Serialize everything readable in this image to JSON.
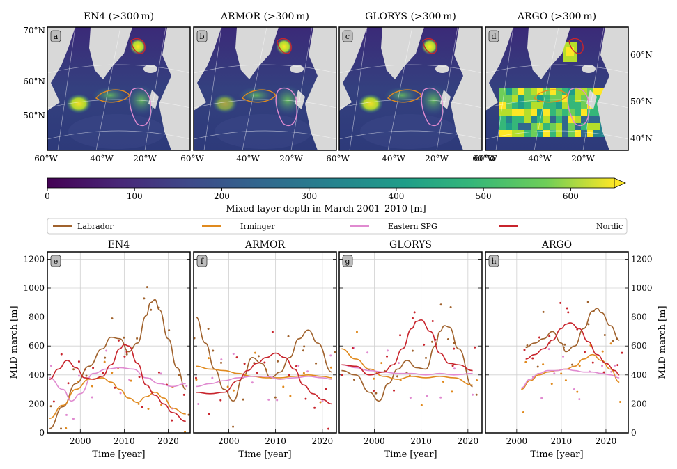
{
  "colors": {
    "Labrador": "#a0622d",
    "Irminger": "#e08a1e",
    "Eastern SPG": "#e08ad0",
    "Nordic": "#c8242c",
    "land": "#d8d8d8",
    "ocean_low": "#3b0f70"
  },
  "maps": [
    {
      "letter": "a",
      "title": "EN4 (>300 m)"
    },
    {
      "letter": "b",
      "title": "ARMOR (>300 m)"
    },
    {
      "letter": "c",
      "title": "GLORYS (>300 m)"
    },
    {
      "letter": "d",
      "title": "ARGO (>300 m)"
    }
  ],
  "map_lat_labels_left": [
    "70°N",
    "60°N",
    "50°N"
  ],
  "map_lat_labels_right": [
    "60°N",
    "50°N",
    "40°N"
  ],
  "map_lon_labels": [
    "60°W",
    "40°W",
    "20°W"
  ],
  "map_lon_labels_first_extra": "60°W",
  "colorbar": {
    "ticks": [
      "0",
      "100",
      "200",
      "300",
      "400",
      "500",
      "600"
    ],
    "label": "Mixed layer depth in March 2001–2010 [m]",
    "colormap": "viridis",
    "range": [
      0,
      650
    ],
    "extend": "max"
  },
  "legend": {
    "entries": [
      "Labrador",
      "Irminger",
      "Eastern SPG",
      "Nordic"
    ],
    "placement": "above-panels"
  },
  "chart_data": {
    "type": "line",
    "ylabel": "MLD march [m]",
    "xlabel": "Time [year]",
    "ylim": [
      0,
      1250
    ],
    "xlim": [
      1993,
      2025
    ],
    "yticks": [
      0,
      200,
      400,
      600,
      800,
      1000,
      1200
    ],
    "xticks": [
      2000,
      2010,
      2020
    ],
    "grid": true,
    "panels": [
      {
        "letter": "e",
        "title": "EN4",
        "xlim": [
          1992.5,
          2025
        ],
        "series": [
          {
            "name": "Labrador",
            "x": [
              1993,
              1996,
              1999,
              2002,
              2005,
              2007,
              2009,
              2011,
              2013,
              2015,
              2016,
              2017,
              2018,
              2020,
              2022,
              2024
            ],
            "y": [
              30,
              180,
              340,
              460,
              580,
              660,
              650,
              560,
              620,
              810,
              900,
              920,
              850,
              650,
              450,
              300
            ]
          },
          {
            "name": "Irminger",
            "x": [
              1993,
              1996,
              1999,
              2002,
              2005,
              2007,
              2009,
              2011,
              2013,
              2015,
              2017,
              2019,
              2021,
              2024
            ],
            "y": [
              100,
              190,
              300,
              370,
              380,
              350,
              300,
              240,
              210,
              250,
              280,
              240,
              170,
              130
            ]
          },
          {
            "name": "Eastern SPG",
            "x": [
              1993,
              1996,
              1998,
              2000,
              2003,
              2006,
              2009,
              2012,
              2015,
              2018,
              2021,
              2024
            ],
            "y": [
              380,
              300,
              220,
              270,
              410,
              440,
              450,
              440,
              380,
              340,
              320,
              340
            ]
          },
          {
            "name": "Nordic",
            "x": [
              1993,
              1995,
              1997,
              1999,
              2001,
              2003,
              2005,
              2007,
              2009,
              2010,
              2011,
              2013,
              2015,
              2017,
              2019,
              2021,
              2024
            ],
            "y": [
              370,
              440,
              500,
              450,
              380,
              370,
              390,
              470,
              580,
              610,
              600,
              480,
              330,
              260,
              200,
              140,
              80
            ]
          }
        ]
      },
      {
        "letter": "f",
        "title": "ARMOR",
        "xlim": [
          1992.5,
          2023
        ],
        "series": [
          {
            "name": "Labrador",
            "x": [
              1993,
              1995,
              1997,
              1999,
              2001,
              2003,
              2005,
              2007,
              2009,
              2011,
              2013,
              2015,
              2017,
              2019,
              2022
            ],
            "y": [
              800,
              620,
              440,
              300,
              220,
              380,
              520,
              480,
              380,
              420,
              520,
              650,
              710,
              620,
              420
            ]
          },
          {
            "name": "Irminger",
            "x": [
              1993,
              1996,
              1999,
              2002,
              2005,
              2008,
              2011,
              2014,
              2017,
              2020,
              2022
            ],
            "y": [
              460,
              440,
              430,
              410,
              390,
              380,
              380,
              390,
              400,
              390,
              380
            ]
          },
          {
            "name": "Eastern SPG",
            "x": [
              1993,
              1996,
              1999,
              2002,
              2005,
              2008,
              2011,
              2014,
              2017,
              2020,
              2022
            ],
            "y": [
              320,
              340,
              360,
              380,
              390,
              390,
              370,
              380,
              390,
              380,
              370
            ]
          },
          {
            "name": "Nordic",
            "x": [
              1993,
              1996,
              1999,
              2002,
              2004,
              2006,
              2008,
              2010,
              2012,
              2014,
              2016,
              2018,
              2020,
              2022
            ],
            "y": [
              280,
              270,
              280,
              360,
              430,
              480,
              520,
              550,
              520,
              440,
              330,
              270,
              230,
              200
            ]
          }
        ]
      },
      {
        "letter": "g",
        "title": "GLORYS",
        "xlim": [
          1992.5,
          2023
        ],
        "series": [
          {
            "name": "Labrador",
            "x": [
              1993,
              1996,
              1999,
              2001,
              2003,
              2005,
              2007,
              2009,
              2011,
              2013,
              2014,
              2015,
              2016,
              2018,
              2021
            ],
            "y": [
              430,
              400,
              280,
              220,
              340,
              440,
              500,
              450,
              440,
              600,
              700,
              740,
              730,
              580,
              320
            ]
          },
          {
            "name": "Irminger",
            "x": [
              1993,
              1996,
              1999,
              2002,
              2005,
              2008,
              2011,
              2014,
              2017,
              2021
            ],
            "y": [
              580,
              510,
              440,
              390,
              370,
              390,
              380,
              390,
              380,
              330
            ]
          },
          {
            "name": "Eastern SPG",
            "x": [
              1993,
              1996,
              1999,
              2002,
              2005,
              2008,
              2011,
              2014,
              2017,
              2021
            ],
            "y": [
              470,
              450,
              430,
              420,
              410,
              410,
              400,
              410,
              400,
              410
            ]
          },
          {
            "name": "Nordic",
            "x": [
              1993,
              1996,
              1999,
              2002,
              2004,
              2006,
              2008,
              2009,
              2010,
              2012,
              2014,
              2016,
              2018,
              2021
            ],
            "y": [
              470,
              460,
              400,
              420,
              470,
              580,
              720,
              770,
              780,
              700,
              550,
              480,
              470,
              430
            ]
          }
        ]
      },
      {
        "letter": "h",
        "title": "ARGO",
        "xlim": [
          1993,
          2025
        ],
        "series": [
          {
            "name": "Labrador",
            "x": [
              2002,
              2004,
              2006,
              2008,
              2010,
              2011,
              2013,
              2015,
              2017,
              2018,
              2019,
              2021,
              2023
            ],
            "y": [
              590,
              620,
              650,
              700,
              620,
              560,
              600,
              720,
              840,
              860,
              830,
              740,
              640
            ]
          },
          {
            "name": "Irminger",
            "x": [
              2001,
              2003,
              2005,
              2007,
              2009,
              2011,
              2013,
              2015,
              2017,
              2019,
              2021,
              2023
            ],
            "y": [
              300,
              360,
              400,
              420,
              430,
              440,
              460,
              510,
              540,
              500,
              440,
              350
            ]
          },
          {
            "name": "Eastern SPG",
            "x": [
              2001,
              2003,
              2005,
              2007,
              2009,
              2011,
              2013,
              2015,
              2017,
              2019,
              2021,
              2023
            ],
            "y": [
              310,
              370,
              410,
              430,
              430,
              440,
              430,
              420,
              420,
              410,
              400,
              380
            ]
          },
          {
            "name": "Nordic",
            "x": [
              2002,
              2004,
              2006,
              2008,
              2010,
              2011,
              2012,
              2014,
              2016,
              2018,
              2020,
              2022,
              2023
            ],
            "y": [
              510,
              540,
              580,
              640,
              720,
              750,
              760,
              720,
              630,
              540,
              480,
              430,
              400
            ]
          }
        ]
      }
    ],
    "scatter_points_note_hidden": ""
  }
}
